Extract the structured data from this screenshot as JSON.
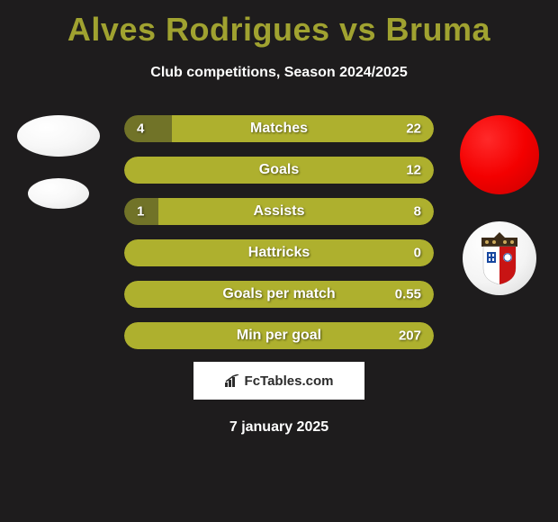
{
  "title": "Alves Rodrigues vs Bruma",
  "title_color": "#a0a230",
  "subtitle": "Club competitions, Season 2024/2025",
  "background_color": "#1e1c1d",
  "player_left": {
    "name": "Alves Rodrigues",
    "avatar_bg": "#f8f8f8"
  },
  "player_right": {
    "name": "Bruma",
    "avatar_bg": "#f40000"
  },
  "bars": {
    "left_color": "#717328",
    "right_color": "#aeb02e",
    "height": 30,
    "gap": 16,
    "radius": 15,
    "label_fontsize": 16,
    "value_fontsize": 15,
    "rows": [
      {
        "label": "Matches",
        "left_val": "4",
        "right_val": "22",
        "left_pct": 15.4,
        "right_pct": 84.6,
        "show_left_val": true,
        "show_right_val": true
      },
      {
        "label": "Goals",
        "left_val": "",
        "right_val": "12",
        "left_pct": 0.0,
        "right_pct": 100.0,
        "show_left_val": false,
        "show_right_val": true
      },
      {
        "label": "Assists",
        "left_val": "1",
        "right_val": "8",
        "left_pct": 11.1,
        "right_pct": 88.9,
        "show_left_val": true,
        "show_right_val": true
      },
      {
        "label": "Hattricks",
        "left_val": "",
        "right_val": "0",
        "left_pct": 0.0,
        "right_pct": 100.0,
        "show_left_val": false,
        "show_right_val": true
      },
      {
        "label": "Goals per match",
        "left_val": "",
        "right_val": "0.55",
        "left_pct": 0.0,
        "right_pct": 100.0,
        "show_left_val": false,
        "show_right_val": true
      },
      {
        "label": "Min per goal",
        "left_val": "",
        "right_val": "207",
        "left_pct": 0.0,
        "right_pct": 100.0,
        "show_left_val": false,
        "show_right_val": true
      }
    ]
  },
  "footer_brand": "FcTables.com",
  "footer_date": "7 january 2025"
}
